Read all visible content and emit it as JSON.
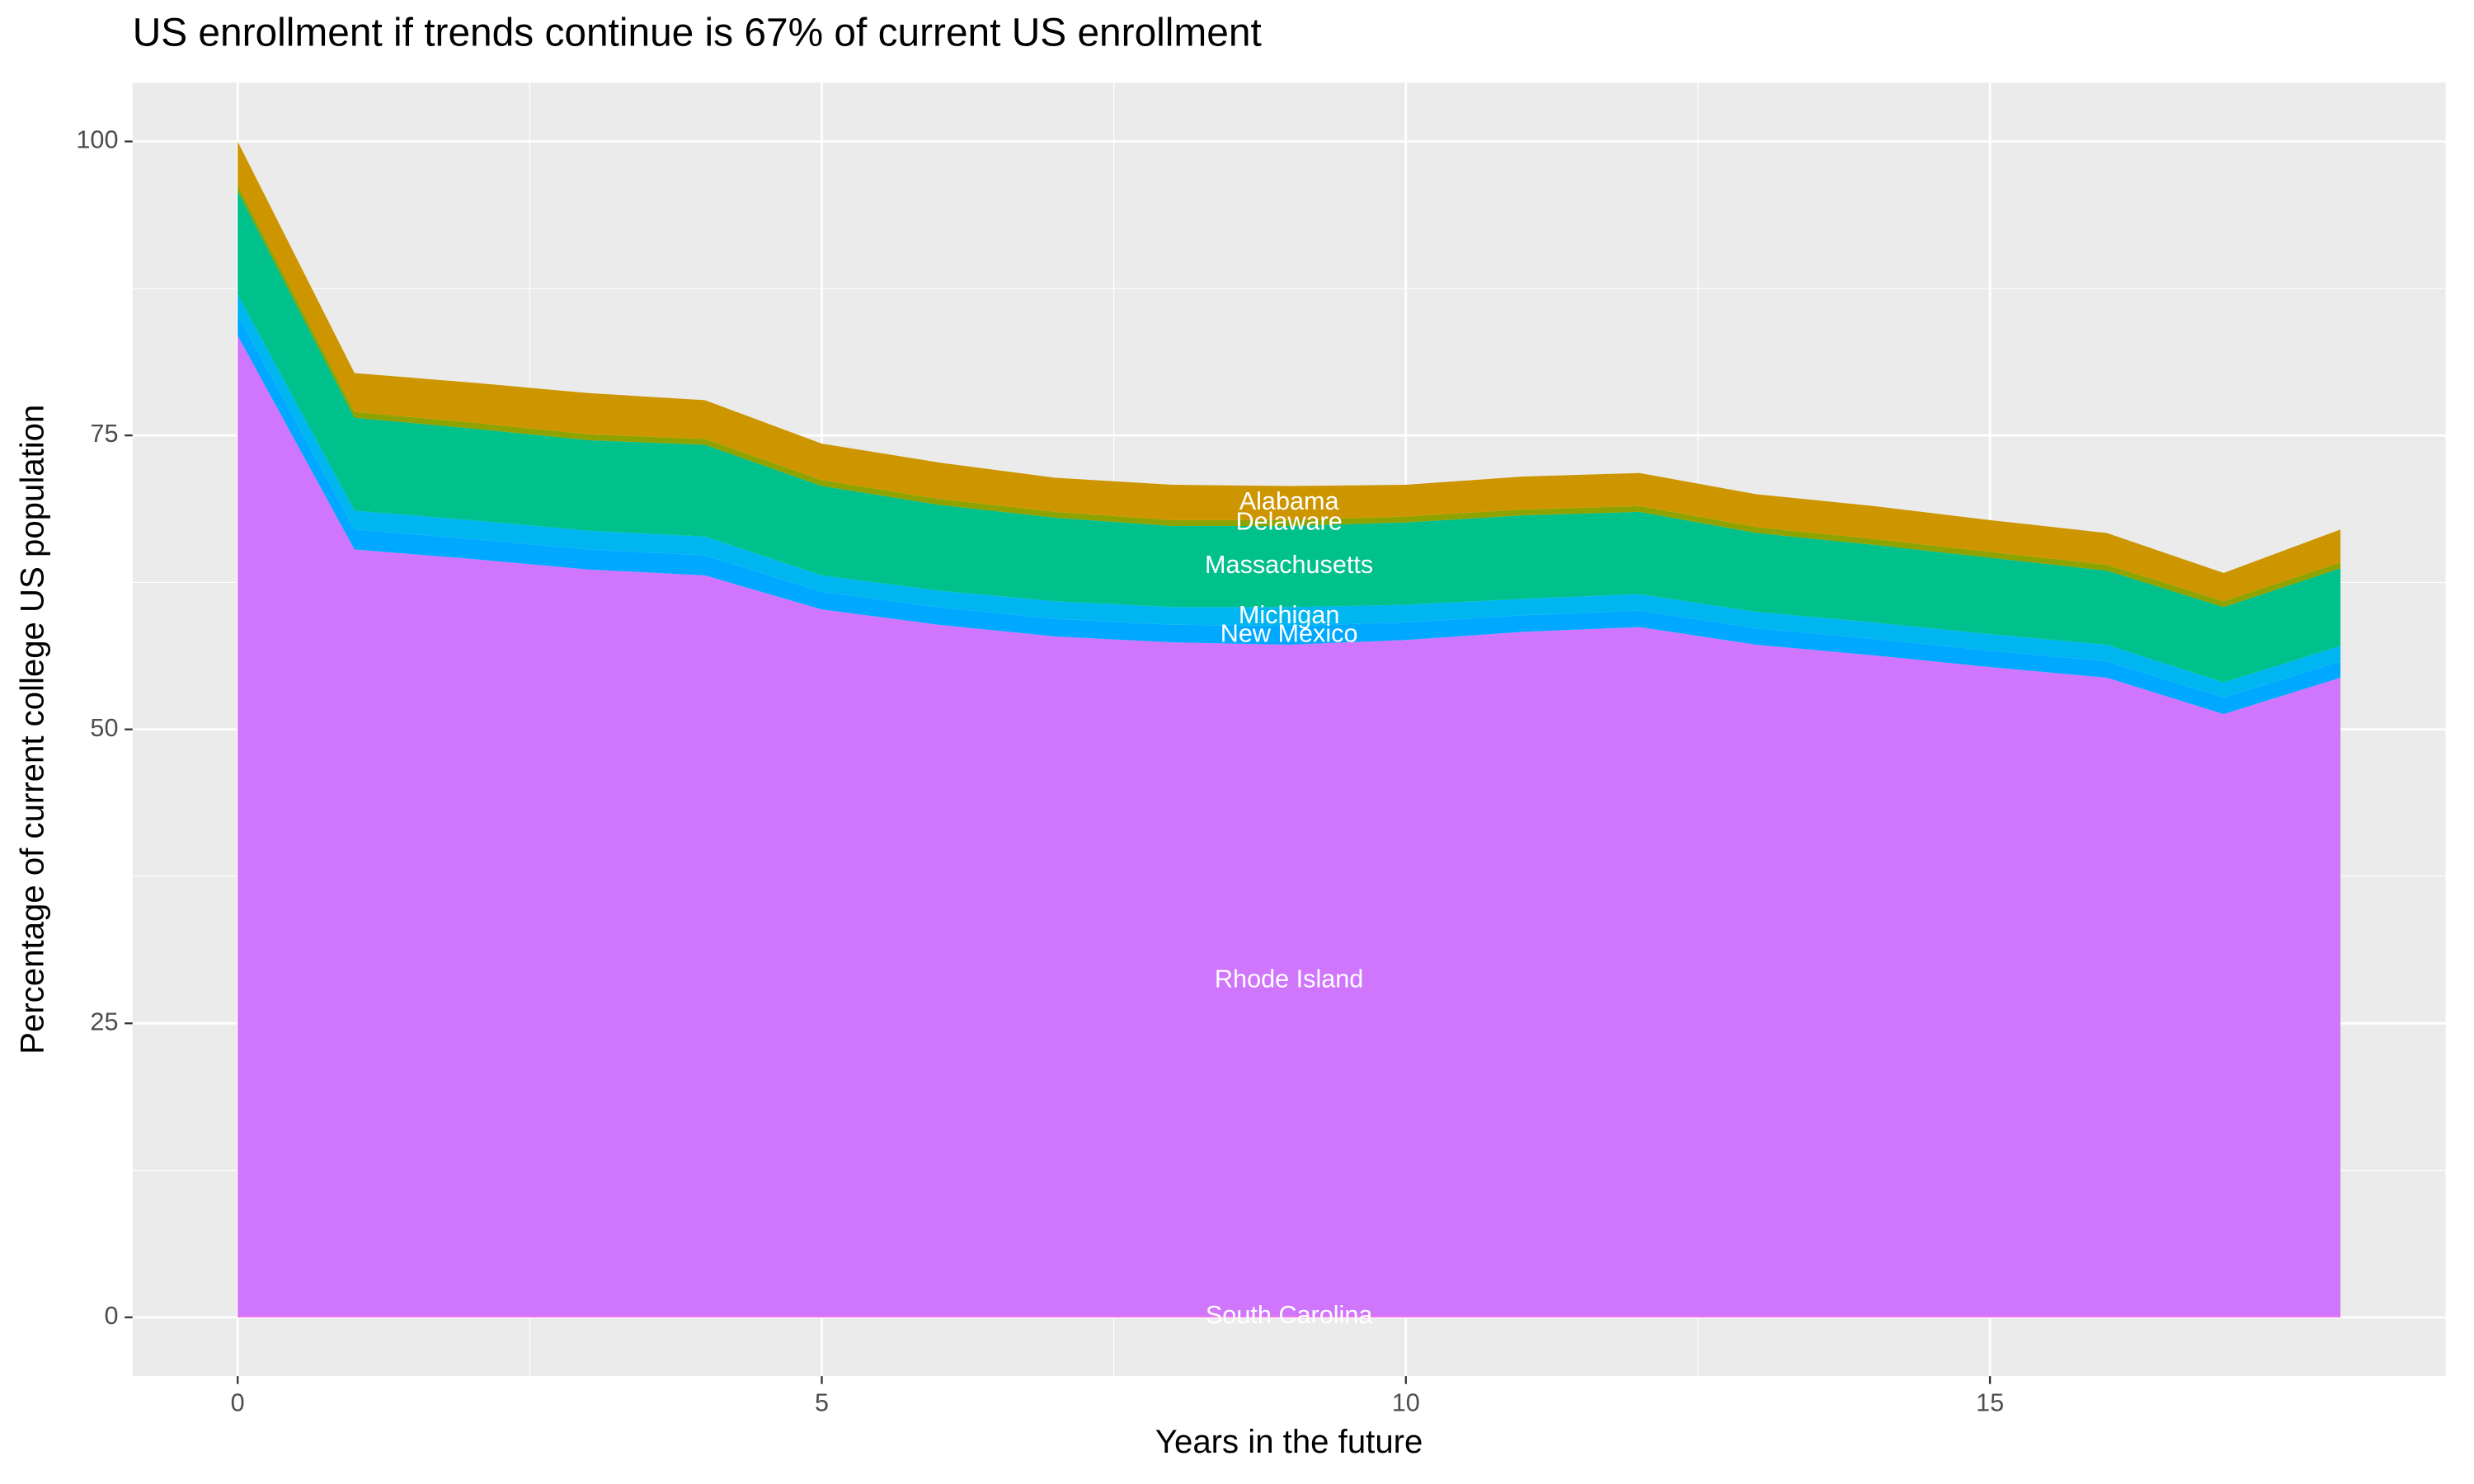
{
  "chart_data": {
    "type": "stacked_area",
    "title": "US enrollment if trends continue is 67% of current US enrollment",
    "x_label": "Years in the future",
    "y_label": "Percentage of current college US population",
    "x": [
      0,
      1,
      2,
      3,
      4,
      5,
      6,
      7,
      8,
      9,
      10,
      11,
      12,
      13,
      14,
      15,
      16,
      17,
      18
    ],
    "series": [
      {
        "name": "South Carolina",
        "color": "#f564e3",
        "values": [
          0.1,
          0.1,
          0.1,
          0.1,
          0.1,
          0.1,
          0.1,
          0.1,
          0.1,
          0.1,
          0.1,
          0.1,
          0.1,
          0.1,
          0.1,
          0.1,
          0.1,
          0.1,
          0.1
        ]
      },
      {
        "name": "Rhode Island",
        "color": "#cf76fc",
        "values": [
          83.4,
          65.2,
          64.4,
          63.5,
          63.0,
          60.1,
          58.8,
          57.8,
          57.3,
          57.1,
          57.5,
          58.2,
          58.6,
          57.1,
          56.2,
          55.2,
          54.3,
          51.2,
          54.3
        ]
      },
      {
        "name": "New Mexico",
        "color": "#00a9ff",
        "values": [
          1.8,
          1.7,
          1.7,
          1.7,
          1.7,
          1.5,
          1.5,
          1.5,
          1.5,
          1.6,
          1.5,
          1.4,
          1.4,
          1.4,
          1.4,
          1.4,
          1.4,
          1.4,
          1.4
        ]
      },
      {
        "name": "Michigan",
        "color": "#00b6f0",
        "values": [
          1.7,
          1.6,
          1.6,
          1.6,
          1.6,
          1.4,
          1.4,
          1.5,
          1.5,
          1.6,
          1.5,
          1.4,
          1.4,
          1.4,
          1.4,
          1.4,
          1.4,
          1.3,
          1.3
        ]
      },
      {
        "name": "Massachusetts",
        "color": "#00c08b",
        "values": [
          8.8,
          7.9,
          7.8,
          7.7,
          7.8,
          7.6,
          7.3,
          7.1,
          6.9,
          6.9,
          7.0,
          7.1,
          7.0,
          6.7,
          6.6,
          6.5,
          6.3,
          6.4,
          6.6
        ]
      },
      {
        "name": "Delaware",
        "color": "#8fa300",
        "values": [
          0.5,
          0.5,
          0.5,
          0.5,
          0.5,
          0.5,
          0.5,
          0.5,
          0.5,
          0.5,
          0.5,
          0.5,
          0.5,
          0.5,
          0.5,
          0.5,
          0.5,
          0.5,
          0.5
        ]
      },
      {
        "name": "Alabama",
        "color": "#cd9600",
        "values": [
          3.7,
          3.3,
          3.4,
          3.5,
          3.3,
          3.1,
          3.1,
          2.9,
          3.0,
          2.9,
          2.7,
          2.8,
          2.8,
          2.8,
          2.8,
          2.7,
          2.7,
          2.4,
          2.8
        ]
      }
    ],
    "xlim": [
      -0.9,
      18.9
    ],
    "ylim": [
      -5,
      105
    ],
    "xticks": [
      0,
      5,
      10,
      15
    ],
    "yticks": [
      0,
      25,
      50,
      75,
      100
    ],
    "grid": true
  }
}
